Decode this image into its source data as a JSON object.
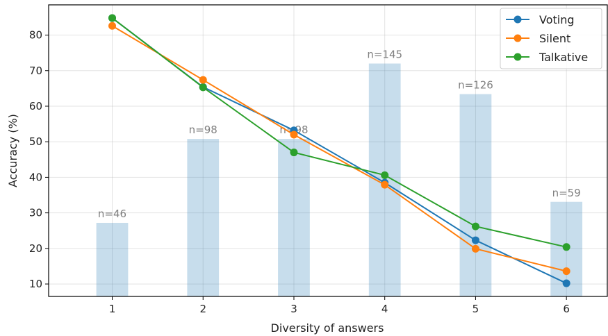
{
  "chart_data": {
    "type": "line",
    "title": "",
    "xlabel": "Diversity of answers",
    "ylabel": "Accuracy (%)",
    "x": [
      1,
      2,
      3,
      4,
      5,
      6
    ],
    "xlim": [
      0.3,
      6.45
    ],
    "ylim": [
      6.5,
      88.5
    ],
    "yticks": [
      10,
      20,
      30,
      40,
      50,
      60,
      70,
      80
    ],
    "grid": true,
    "legend_position": "top-right",
    "series": [
      {
        "name": "Voting",
        "color": "#1f77b4",
        "values": [
          84.8,
          65.4,
          53.2,
          38.5,
          22.3,
          10.2
        ]
      },
      {
        "name": "Silent",
        "color": "#ff7f0e",
        "values": [
          82.6,
          67.4,
          52.0,
          37.9,
          19.9,
          13.6
        ]
      },
      {
        "name": "Talkative",
        "color": "#2ca02c",
        "values": [
          84.8,
          65.3,
          47.0,
          40.6,
          26.2,
          20.4
        ]
      }
    ],
    "bars": {
      "color": "#1f77b4",
      "opacity": 0.25,
      "values": [
        27.2,
        50.8,
        50.8,
        72.0,
        63.4,
        33.1
      ],
      "labels": [
        "n=46",
        "n=98",
        "n=98",
        "n=145",
        "n=126",
        "n=59"
      ]
    }
  }
}
